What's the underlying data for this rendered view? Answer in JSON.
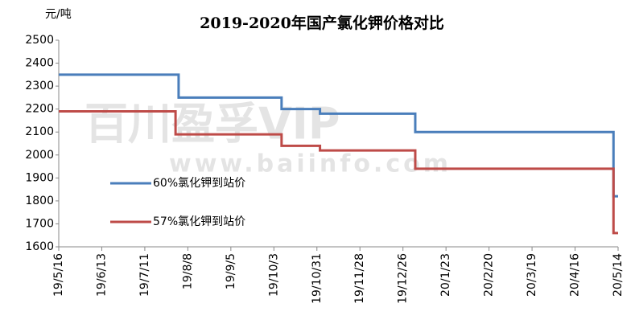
{
  "chart_data": {
    "type": "line",
    "step": true,
    "title": "2019-2020年国产氯化钾价格对比",
    "y_label": "元/吨",
    "watermark": [
      "百川盈孚VIP",
      "www.baiinfo.com"
    ],
    "ylim": [
      1600,
      2500
    ],
    "yticks": [
      1600,
      1700,
      1800,
      1900,
      2000,
      2100,
      2200,
      2300,
      2400,
      2500
    ],
    "xlim": [
      "19/5/16",
      "20/5/14"
    ],
    "xticks": [
      "19/5/16",
      "19/6/13",
      "19/7/11",
      "19/8/8",
      "19/9/5",
      "19/10/3",
      "19/10/31",
      "19/11/28",
      "19/12/26",
      "20/1/23",
      "20/2/20",
      "20/3/19",
      "20/4/16",
      "20/5/14"
    ],
    "legend": "center-left",
    "series": [
      {
        "name": "60%氯化钾到站价",
        "color": "#4a7ebb",
        "x": [
          "19/5/16",
          "19/8/2",
          "19/8/2",
          "19/10/8",
          "19/10/8",
          "19/11/2",
          "19/11/2",
          "20/1/3",
          "20/1/3",
          "20/5/11",
          "20/5/11",
          "20/5/14"
        ],
        "values": [
          2350,
          2350,
          2250,
          2250,
          2200,
          2200,
          2180,
          2180,
          2100,
          2100,
          1820,
          1820
        ]
      },
      {
        "name": "57%氯化钾到站价",
        "color": "#be4b48",
        "x": [
          "19/5/16",
          "19/7/31",
          "19/7/31",
          "19/10/8",
          "19/10/8",
          "19/11/2",
          "19/11/2",
          "20/1/3",
          "20/1/3",
          "20/5/11",
          "20/5/11",
          "20/5/14"
        ],
        "values": [
          2190,
          2190,
          2090,
          2090,
          2040,
          2040,
          2020,
          2020,
          1940,
          1940,
          1660,
          1660
        ]
      }
    ]
  }
}
